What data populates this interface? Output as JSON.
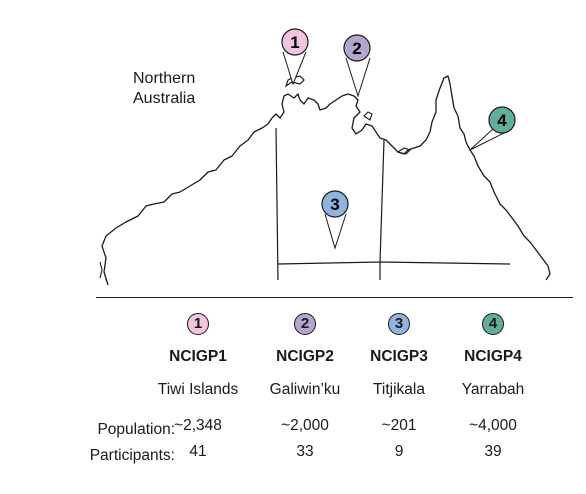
{
  "map": {
    "region_label_line1": "Northern",
    "region_label_line2": "Australia"
  },
  "sites": [
    {
      "number": "1",
      "id": "NCIGP1",
      "location": "Tiwi Islands",
      "population": "~2,348",
      "participants": "41",
      "color": "#f2c4dd"
    },
    {
      "number": "2",
      "id": "NCIGP2",
      "location": "Galiwin’ku",
      "population": "~2,000",
      "participants": "33",
      "color": "#b3a5cf"
    },
    {
      "number": "3",
      "id": "NCIGP3",
      "location": "Titjikala",
      "population": "~201",
      "participants": "9",
      "color": "#8fb4de"
    },
    {
      "number": "4",
      "id": "NCIGP4",
      "location": "Yarrabah",
      "population": "~4,000",
      "participants": "39",
      "color": "#63ad9d"
    }
  ],
  "table": {
    "population_label": "Population:",
    "participants_label": "Participants:"
  }
}
